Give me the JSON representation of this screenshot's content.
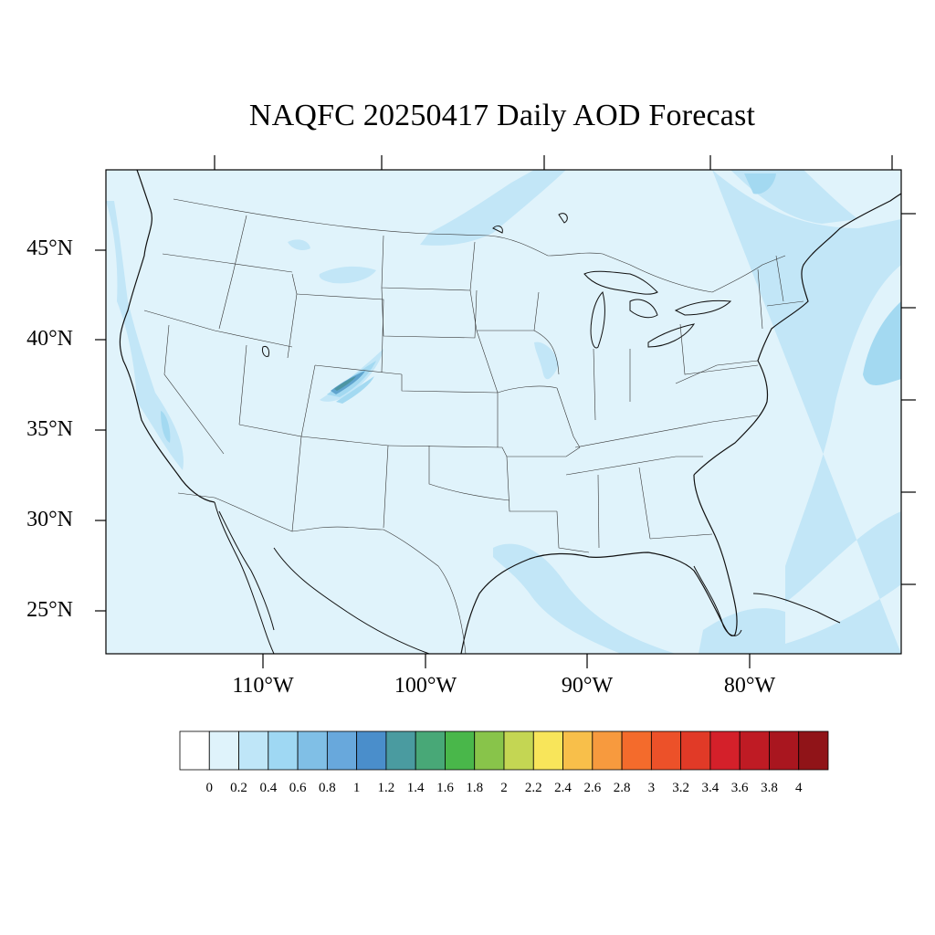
{
  "title": "NAQFC 20250417 Daily AOD Forecast",
  "lat_labels": [
    "45°N",
    "40°N",
    "35°N",
    "30°N",
    "25°N"
  ],
  "lon_labels": [
    "110°W",
    "100°W",
    "90°W",
    "80°W"
  ],
  "colorbar": {
    "labels": [
      "0",
      "0.2",
      "0.4",
      "0.6",
      "0.8",
      "1",
      "1.2",
      "1.4",
      "1.6",
      "1.8",
      "2",
      "2.2",
      "2.4",
      "2.6",
      "2.8",
      "3",
      "3.2",
      "3.4",
      "3.6",
      "3.8",
      "4"
    ],
    "colors": [
      "#ffffff",
      "#dff3fb",
      "#bfe6f8",
      "#9fd8f3",
      "#80bfe6",
      "#68a8dc",
      "#4a8ecb",
      "#4a9ba0",
      "#48a877",
      "#49b74a",
      "#88c44a",
      "#c4d653",
      "#f8e55a",
      "#f8bf4a",
      "#f79a3e",
      "#f46b2c",
      "#ec5129",
      "#e13a27",
      "#d4202a",
      "#bf1b24",
      "#a9161f",
      "#901418"
    ]
  },
  "colors": {
    "background_aod": "#e0f3fb",
    "plume_light": "#c2e6f7",
    "plume_mid": "#a3d9f1",
    "plume_dark": "#5fa4ce",
    "plume_core": "#4d95a2"
  }
}
